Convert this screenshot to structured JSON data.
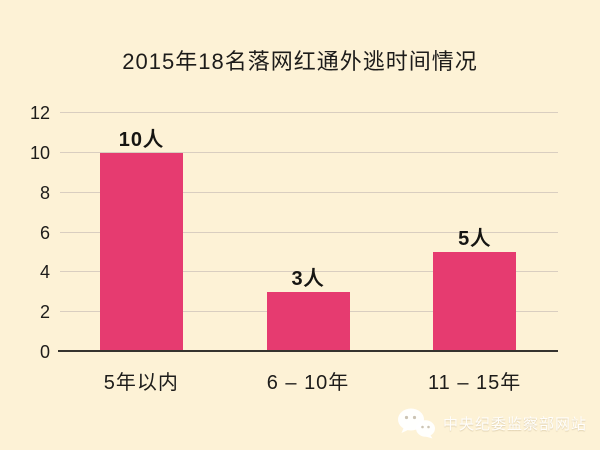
{
  "title": "2015年18名落网红通外逃时间情况",
  "chart_data": {
    "type": "bar",
    "title": "2015年18名落网红通外逃时间情况",
    "categories": [
      "5年以内",
      "6 – 10年",
      "11 – 15年"
    ],
    "values": [
      10,
      3,
      5
    ],
    "bar_labels": [
      "10人",
      "3人",
      "5人"
    ],
    "xlabel": "",
    "ylabel": "",
    "ylim": [
      0,
      12
    ],
    "yticks": [
      0,
      2,
      4,
      6,
      8,
      10,
      12
    ],
    "grid": "horizontal",
    "legend": "none",
    "colors": {
      "background": "#fdf2d6",
      "bar": "#e63b70",
      "gridline": "#d9cec0",
      "axis_line": "#35332e",
      "text": "#1d1c1a"
    }
  },
  "watermark": {
    "icon": "wechat-icon",
    "text": "中央纪委监察部网站",
    "color": "#ffffff"
  }
}
